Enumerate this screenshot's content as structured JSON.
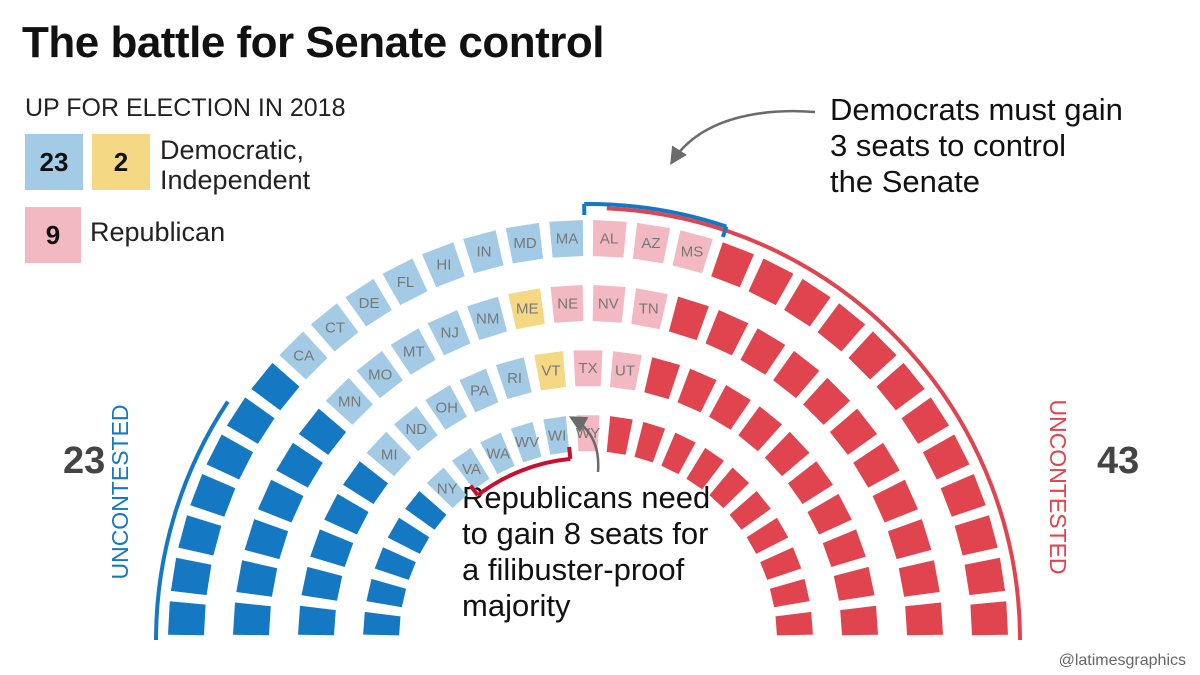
{
  "title": "The battle for Senate control",
  "legend": {
    "heading": "UP FOR ELECTION IN 2018",
    "democratic_count": "23",
    "independent_count": "2",
    "dem_ind_label_line1": "Democratic,",
    "dem_ind_label_line2": "Independent",
    "republican_count": "9",
    "republican_label": "Republican"
  },
  "uncontested": {
    "left_label": "UNCONTESTED",
    "left_count": "23",
    "right_label": "UNCONTESTED",
    "right_count": "43"
  },
  "annotations": {
    "democrats": [
      "Democrats must gain",
      "3 seats to control",
      "the Senate"
    ],
    "republicans": [
      "Republicans need",
      "to gain 8 seats for",
      "a filibuster-proof",
      "majority"
    ]
  },
  "credit": "@latimesgraphics",
  "colors": {
    "dem_uncontested": "#1479c2",
    "dem_contested": "#a4cbe6",
    "ind_contested": "#f4d883",
    "rep_contested": "#f3b9c2",
    "rep_uncontested": "#e0454f",
    "contested_label": "#777777",
    "bracket_dem": "#1479c2",
    "bracket_rep": "#c8102e",
    "arrow": "#6b6b6b"
  },
  "chart_data": {
    "type": "parliament",
    "total_seats": 100,
    "rows": [
      {
        "seats": [
          {
            "party": "dem",
            "contested": false
          },
          {
            "party": "dem",
            "contested": false
          },
          {
            "party": "dem",
            "contested": false
          },
          {
            "party": "dem",
            "contested": false
          },
          {
            "party": "dem",
            "contested": false
          },
          {
            "party": "dem",
            "contested": false
          },
          {
            "party": "dem",
            "contested": false
          },
          {
            "party": "dem",
            "contested": true,
            "state": "CA"
          },
          {
            "party": "dem",
            "contested": true,
            "state": "CT"
          },
          {
            "party": "dem",
            "contested": true,
            "state": "DE"
          },
          {
            "party": "dem",
            "contested": true,
            "state": "FL"
          },
          {
            "party": "dem",
            "contested": true,
            "state": "HI"
          },
          {
            "party": "dem",
            "contested": true,
            "state": "IN"
          },
          {
            "party": "dem",
            "contested": true,
            "state": "MD"
          },
          {
            "party": "dem",
            "contested": true,
            "state": "MA"
          },
          {
            "party": "rep",
            "contested": true,
            "state": "AL"
          },
          {
            "party": "rep",
            "contested": true,
            "state": "AZ"
          },
          {
            "party": "rep",
            "contested": true,
            "state": "MS"
          },
          {
            "party": "rep",
            "contested": false
          },
          {
            "party": "rep",
            "contested": false
          },
          {
            "party": "rep",
            "contested": false
          },
          {
            "party": "rep",
            "contested": false
          },
          {
            "party": "rep",
            "contested": false
          },
          {
            "party": "rep",
            "contested": false
          },
          {
            "party": "rep",
            "contested": false
          },
          {
            "party": "rep",
            "contested": false
          },
          {
            "party": "rep",
            "contested": false
          },
          {
            "party": "rep",
            "contested": false
          },
          {
            "party": "rep",
            "contested": false
          },
          {
            "party": "rep",
            "contested": false
          }
        ]
      },
      {
        "seats": [
          {
            "party": "dem",
            "contested": false
          },
          {
            "party": "dem",
            "contested": false
          },
          {
            "party": "dem",
            "contested": false
          },
          {
            "party": "dem",
            "contested": false
          },
          {
            "party": "dem",
            "contested": false
          },
          {
            "party": "dem",
            "contested": false
          },
          {
            "party": "dem",
            "contested": true,
            "state": "MN"
          },
          {
            "party": "dem",
            "contested": true,
            "state": "MO"
          },
          {
            "party": "dem",
            "contested": true,
            "state": "MT"
          },
          {
            "party": "dem",
            "contested": true,
            "state": "NJ"
          },
          {
            "party": "dem",
            "contested": true,
            "state": "NM"
          },
          {
            "party": "ind",
            "contested": true,
            "state": "ME"
          },
          {
            "party": "rep",
            "contested": true,
            "state": "NE"
          },
          {
            "party": "rep",
            "contested": true,
            "state": "NV"
          },
          {
            "party": "rep",
            "contested": true,
            "state": "TN"
          },
          {
            "party": "rep",
            "contested": false
          },
          {
            "party": "rep",
            "contested": false
          },
          {
            "party": "rep",
            "contested": false
          },
          {
            "party": "rep",
            "contested": false
          },
          {
            "party": "rep",
            "contested": false
          },
          {
            "party": "rep",
            "contested": false
          },
          {
            "party": "rep",
            "contested": false
          },
          {
            "party": "rep",
            "contested": false
          },
          {
            "party": "rep",
            "contested": false
          },
          {
            "party": "rep",
            "contested": false
          },
          {
            "party": "rep",
            "contested": false
          }
        ]
      },
      {
        "seats": [
          {
            "party": "dem",
            "contested": false
          },
          {
            "party": "dem",
            "contested": false
          },
          {
            "party": "dem",
            "contested": false
          },
          {
            "party": "dem",
            "contested": false
          },
          {
            "party": "dem",
            "contested": false
          },
          {
            "party": "dem",
            "contested": true,
            "state": "MI"
          },
          {
            "party": "dem",
            "contested": true,
            "state": "ND"
          },
          {
            "party": "dem",
            "contested": true,
            "state": "OH"
          },
          {
            "party": "dem",
            "contested": true,
            "state": "PA"
          },
          {
            "party": "dem",
            "contested": true,
            "state": "RI"
          },
          {
            "party": "ind",
            "contested": true,
            "state": "VT"
          },
          {
            "party": "rep",
            "contested": true,
            "state": "TX"
          },
          {
            "party": "rep",
            "contested": true,
            "state": "UT"
          },
          {
            "party": "rep",
            "contested": false
          },
          {
            "party": "rep",
            "contested": false
          },
          {
            "party": "rep",
            "contested": false
          },
          {
            "party": "rep",
            "contested": false
          },
          {
            "party": "rep",
            "contested": false
          },
          {
            "party": "rep",
            "contested": false
          },
          {
            "party": "rep",
            "contested": false
          },
          {
            "party": "rep",
            "contested": false
          },
          {
            "party": "rep",
            "contested": false
          },
          {
            "party": "rep",
            "contested": false
          }
        ]
      },
      {
        "seats": [
          {
            "party": "dem",
            "contested": false
          },
          {
            "party": "dem",
            "contested": false
          },
          {
            "party": "dem",
            "contested": false
          },
          {
            "party": "dem",
            "contested": false
          },
          {
            "party": "dem",
            "contested": false
          },
          {
            "party": "dem",
            "contested": true,
            "state": "NY"
          },
          {
            "party": "dem",
            "contested": true,
            "state": "VA"
          },
          {
            "party": "dem",
            "contested": true,
            "state": "WA"
          },
          {
            "party": "dem",
            "contested": true,
            "state": "WV"
          },
          {
            "party": "dem",
            "contested": true,
            "state": "WI"
          },
          {
            "party": "rep",
            "contested": true,
            "state": "WY"
          },
          {
            "party": "rep",
            "contested": false
          },
          {
            "party": "rep",
            "contested": false
          },
          {
            "party": "rep",
            "contested": false
          },
          {
            "party": "rep",
            "contested": false
          },
          {
            "party": "rep",
            "contested": false
          },
          {
            "party": "rep",
            "contested": false
          },
          {
            "party": "rep",
            "contested": false
          },
          {
            "party": "rep",
            "contested": false
          },
          {
            "party": "rep",
            "contested": false
          },
          {
            "party": "rep",
            "contested": false
          }
        ]
      }
    ]
  }
}
